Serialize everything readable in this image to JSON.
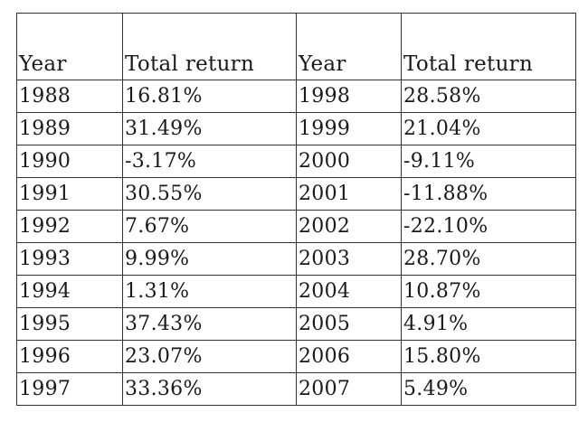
{
  "table": {
    "headers": [
      "Year",
      "Total return",
      "Year",
      "Total return"
    ],
    "rows": [
      [
        "1988",
        "16.81%",
        "1998",
        "28.58%"
      ],
      [
        "1989",
        "31.49%",
        "1999",
        "21.04%"
      ],
      [
        "1990",
        "-3.17%",
        "2000",
        "-9.11%"
      ],
      [
        "1991",
        "30.55%",
        "2001",
        "-11.88%"
      ],
      [
        "1992",
        "7.67%",
        "2002",
        "-22.10%"
      ],
      [
        "1993",
        "9.99%",
        "2003",
        "28.70%"
      ],
      [
        "1994",
        "1.31%",
        "2004",
        "10.87%"
      ],
      [
        "1995",
        "37.43%",
        "2005",
        "4.91%"
      ],
      [
        "1996",
        "23.07%",
        "2006",
        "15.80%"
      ],
      [
        "1997",
        "33.36%",
        "2007",
        "5.49%"
      ]
    ]
  }
}
